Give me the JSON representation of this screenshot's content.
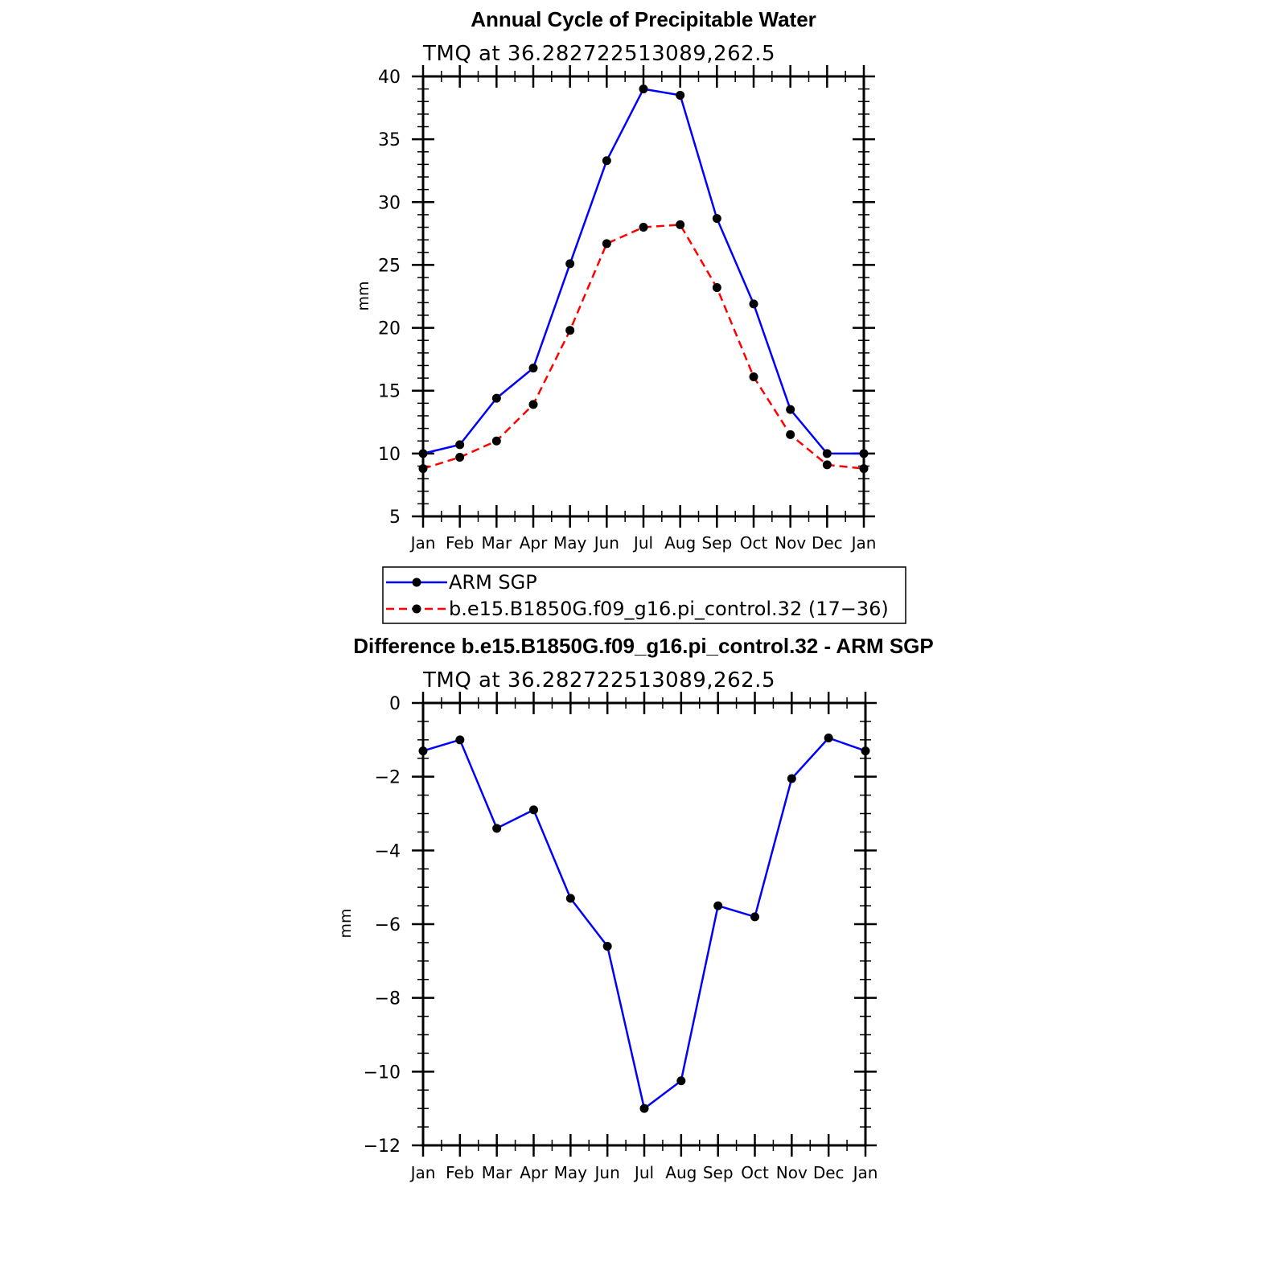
{
  "chart_data": [
    {
      "type": "line",
      "title": "Annual Cycle of Precipitable Water",
      "subtitle": "TMQ at 36.282722513089,262.5",
      "xlabel": "",
      "ylabel": "mm",
      "categories": [
        "Jan",
        "Feb",
        "Mar",
        "Apr",
        "May",
        "Jun",
        "Jul",
        "Aug",
        "Sep",
        "Oct",
        "Nov",
        "Dec",
        "Jan"
      ],
      "ylim": [
        5,
        40
      ],
      "yticks": [
        "5",
        "10",
        "15",
        "20",
        "25",
        "30",
        "35",
        "40"
      ],
      "series": [
        {
          "name": "ARM SGP",
          "color": "#0000ff",
          "dash": "solid",
          "values": [
            10.0,
            10.7,
            14.4,
            16.8,
            25.1,
            33.3,
            39.0,
            38.5,
            28.7,
            21.9,
            13.5,
            10.0,
            10.0
          ]
        },
        {
          "name": "b.e15.B1850G.f09_g16.pi_control.32 (17−36)",
          "color": "#ff0000",
          "dash": "dashed",
          "values": [
            8.8,
            9.7,
            11.0,
            13.9,
            19.8,
            26.7,
            28.0,
            28.2,
            23.2,
            16.1,
            11.5,
            9.1,
            8.8
          ]
        }
      ],
      "legend": [
        "ARM SGP",
        "b.e15.B1850G.f09_g16.pi_control.32 (17−36)"
      ]
    },
    {
      "type": "line",
      "title": "Difference b.e15.B1850G.f09_g16.pi_control.32 - ARM SGP",
      "subtitle": "TMQ at 36.282722513089,262.5",
      "xlabel": "",
      "ylabel": "mm",
      "categories": [
        "Jan",
        "Feb",
        "Mar",
        "Apr",
        "May",
        "Jun",
        "Jul",
        "Aug",
        "Sep",
        "Oct",
        "Nov",
        "Dec",
        "Jan"
      ],
      "ylim": [
        -12,
        0
      ],
      "yticks": [
        "−12",
        "−10",
        "−8",
        "−6",
        "−4",
        "−2",
        "0"
      ],
      "series": [
        {
          "name": "Difference",
          "color": "#0000ff",
          "dash": "solid",
          "values": [
            -1.3,
            -1.0,
            -3.4,
            -2.9,
            -5.3,
            -6.6,
            -11.0,
            -10.25,
            -5.5,
            -5.8,
            -2.05,
            -0.95,
            -1.3
          ]
        }
      ]
    }
  ]
}
